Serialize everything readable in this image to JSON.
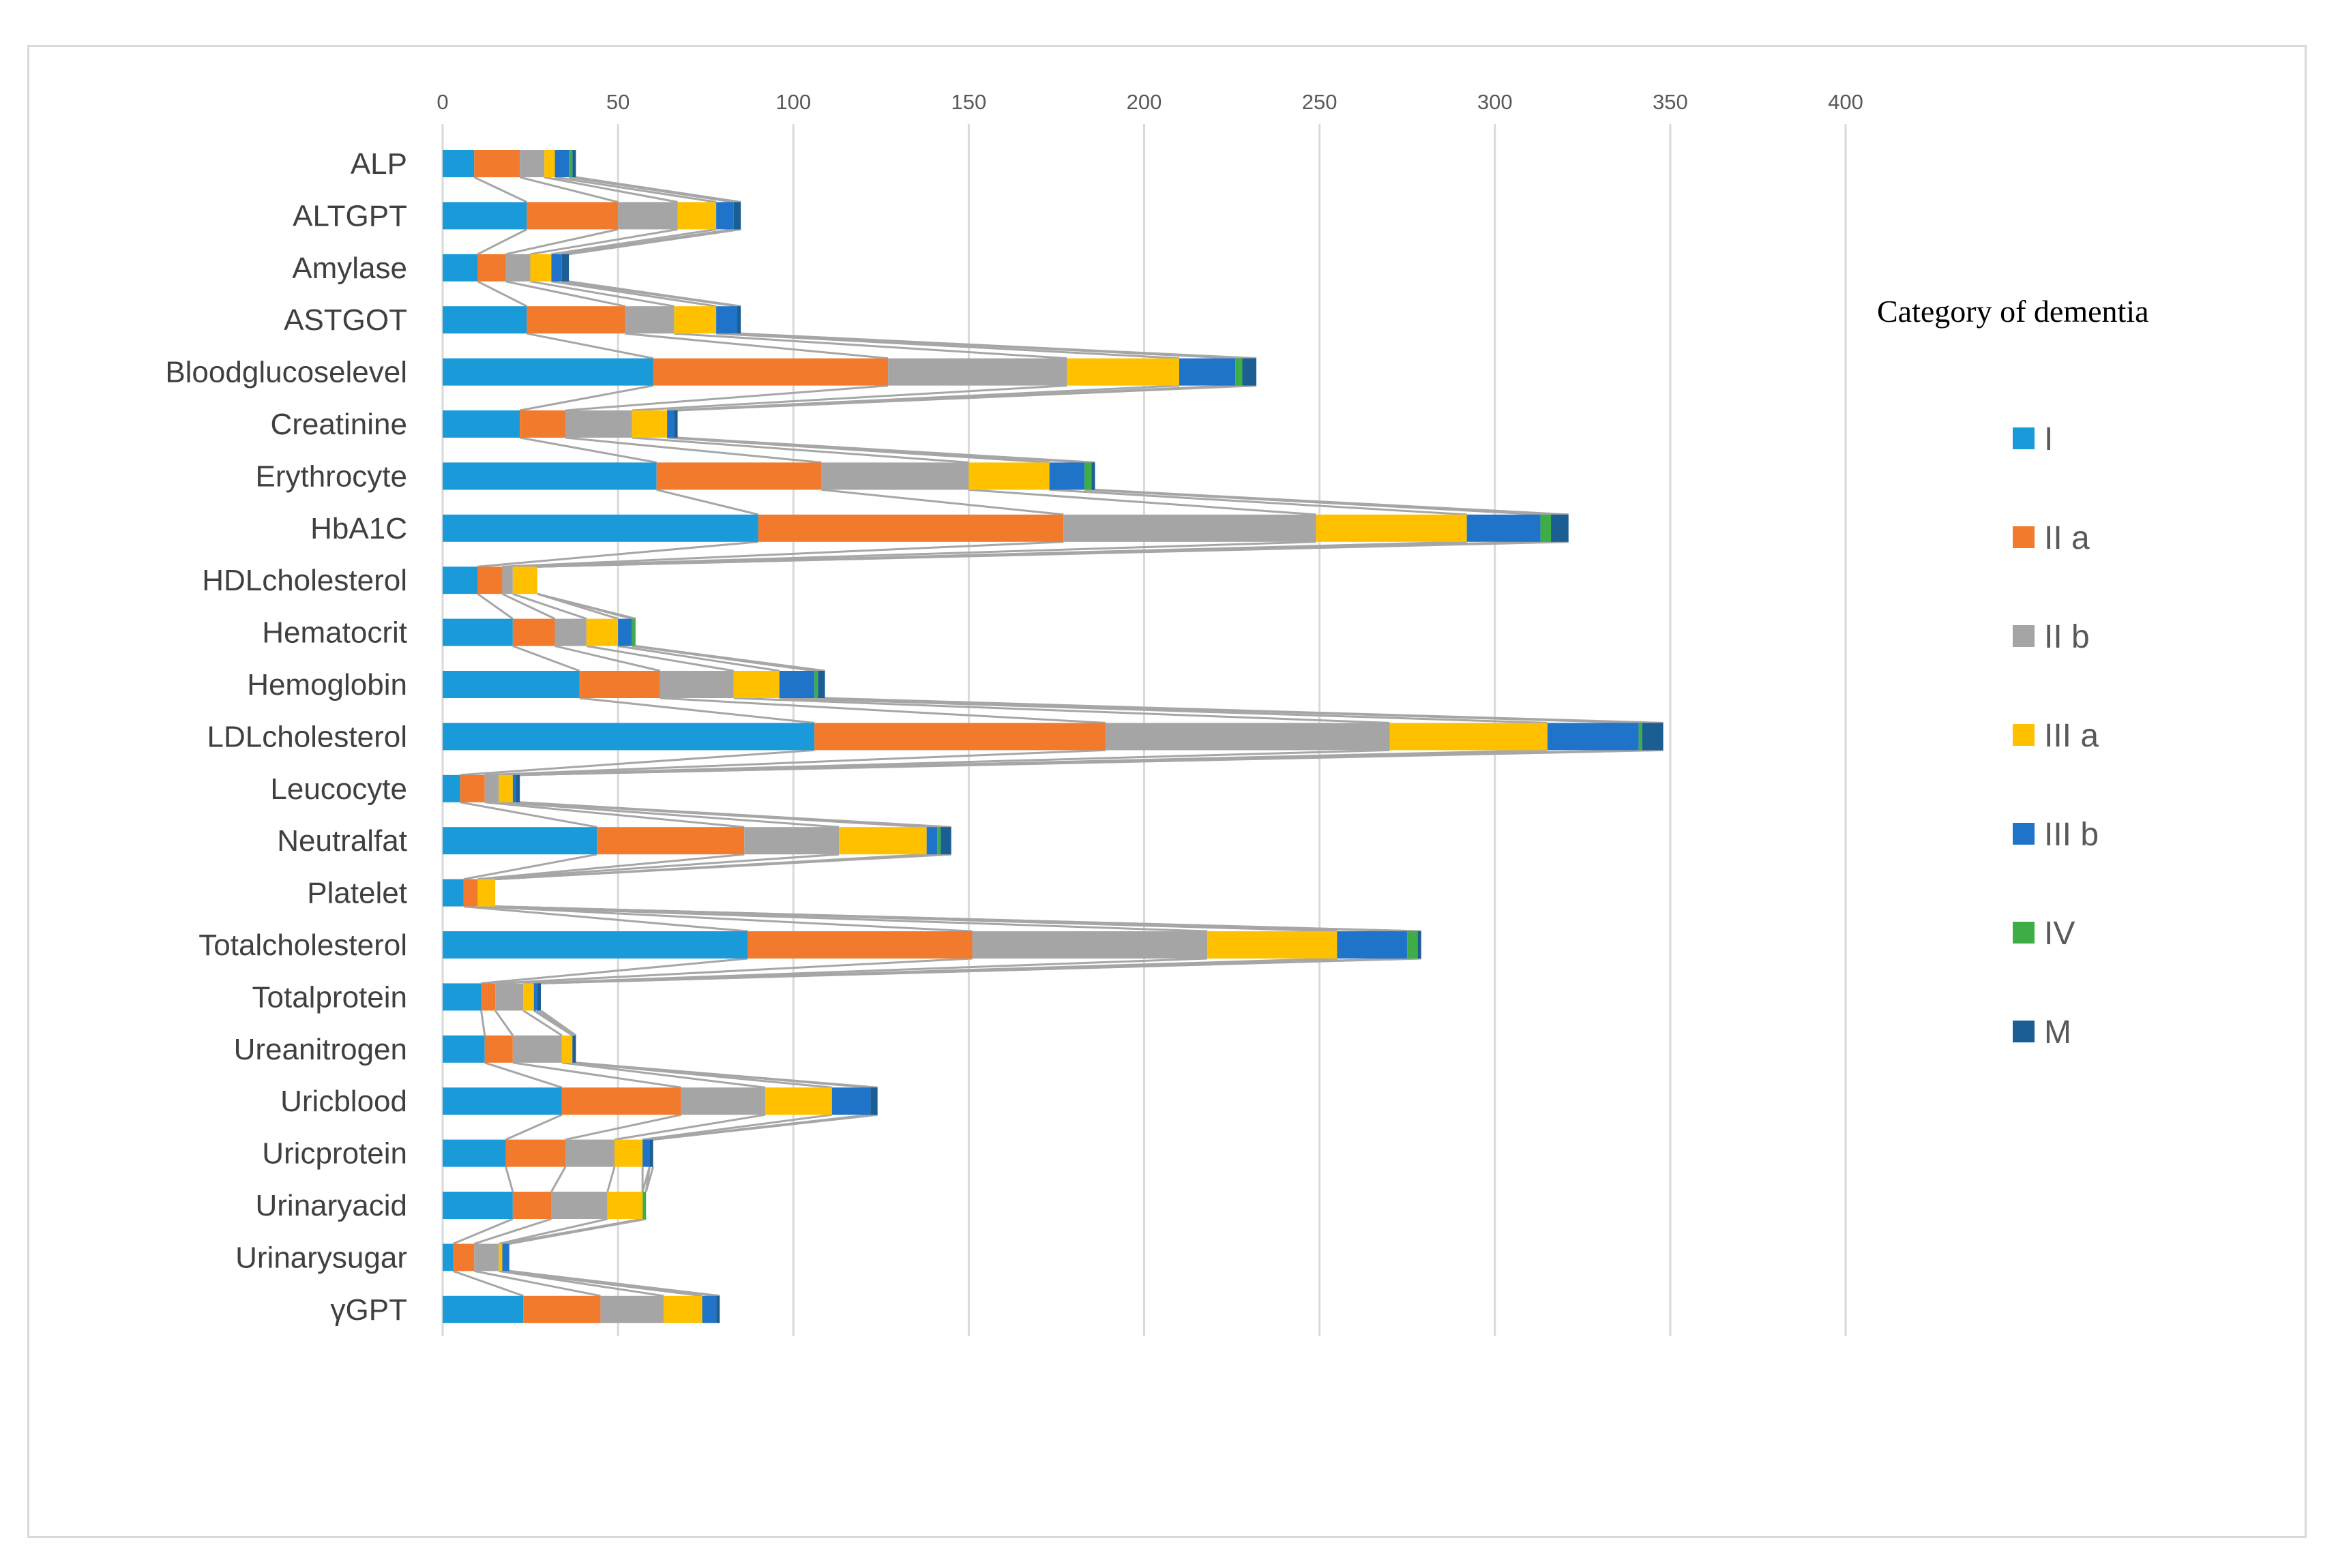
{
  "chart_data": {
    "type": "bar",
    "orientation": "horizontal",
    "stacked": true,
    "title": "",
    "xlabel": "",
    "ylabel": "",
    "xlim": [
      0,
      400
    ],
    "xticks": [
      0,
      50,
      100,
      150,
      200,
      250,
      300,
      350,
      400
    ],
    "grid": true,
    "legend_title": "Category of dementia",
    "legend_position": "right",
    "series_lines": true,
    "categories": [
      "ALP",
      "ALTGPT",
      "Amylase",
      "ASTGOT",
      "Bloodglucoselevel",
      "Creatinine",
      "Erythrocyte",
      "HbA1C",
      "HDLcholesterol",
      "Hematocrit",
      "Hemoglobin",
      "LDLcholesterol",
      "Leucocyte",
      "Neutralfat",
      "Platelet",
      "Totalcholesterol",
      "Totalprotein",
      "Ureanitrogen",
      "Uricblood",
      "Uricprotein",
      "Urinaryacid",
      "Urinarysugar",
      "γGPT"
    ],
    "series": [
      {
        "name": "I",
        "color": "#1a9ad9",
        "values": [
          9,
          24,
          10,
          24,
          60,
          22,
          61,
          90,
          10,
          20,
          39,
          106,
          5,
          44,
          6,
          87,
          11,
          12,
          34,
          18,
          20,
          3,
          23
        ]
      },
      {
        "name": "II a",
        "color": "#f27a2c",
        "values": [
          13,
          26,
          8,
          28,
          67,
          13,
          47,
          87,
          7,
          12,
          23,
          83,
          7,
          42,
          4,
          64,
          4,
          8,
          34,
          17,
          11,
          6,
          22
        ]
      },
      {
        "name": "II b",
        "color": "#a5a5a5",
        "values": [
          7,
          17,
          7,
          14,
          51,
          19,
          42,
          72,
          3,
          9,
          21,
          81,
          4,
          27,
          0,
          67,
          8,
          14,
          24,
          14,
          16,
          7,
          18
        ]
      },
      {
        "name": "III a",
        "color": "#ffc000",
        "values": [
          3,
          11,
          6,
          12,
          32,
          10,
          23,
          43,
          7,
          9,
          13,
          45,
          4,
          25,
          5,
          37,
          3,
          3,
          19,
          8,
          10,
          1,
          11
        ]
      },
      {
        "name": "III b",
        "color": "#1f73c9",
        "values": [
          4,
          5,
          3,
          6,
          16,
          2,
          10,
          21,
          0,
          4,
          10,
          26,
          1,
          3,
          0,
          20,
          1,
          0,
          11,
          2,
          0,
          2,
          4
        ]
      },
      {
        "name": "IV",
        "color": "#3fad46",
        "values": [
          1,
          0,
          0,
          0,
          2,
          0,
          2,
          3,
          0,
          1,
          1,
          1,
          0,
          1,
          0,
          3,
          0,
          0,
          0,
          0,
          1,
          0,
          0
        ]
      },
      {
        "name": "M",
        "color": "#1b5e93",
        "values": [
          1,
          2,
          2,
          1,
          4,
          1,
          1,
          5,
          0,
          0,
          2,
          6,
          1,
          3,
          0,
          1,
          1,
          1,
          2,
          1,
          0,
          0,
          1
        ]
      }
    ]
  }
}
